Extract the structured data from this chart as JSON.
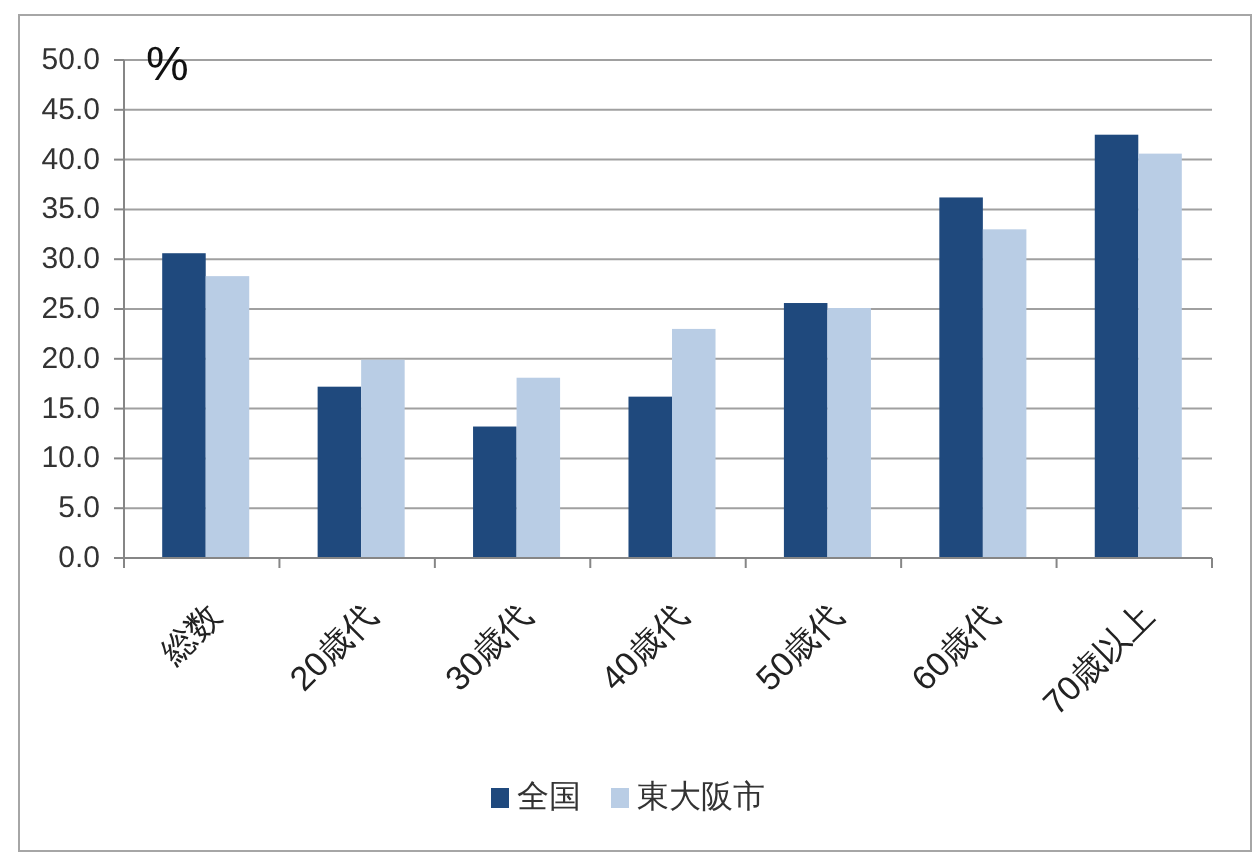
{
  "chart_data": {
    "type": "bar",
    "ylabel": "%",
    "categories": [
      "総数",
      "20歳代",
      "30歳代",
      "40歳代",
      "50歳代",
      "60歳代",
      "70歳以上"
    ],
    "series": [
      {
        "name": "全国",
        "color": "#1f497d",
        "values": [
          30.6,
          17.2,
          13.2,
          16.2,
          25.6,
          36.2,
          42.5
        ]
      },
      {
        "name": "東大阪市",
        "color": "#b9cde5",
        "values": [
          28.3,
          19.9,
          18.1,
          23.0,
          25.1,
          33.0,
          40.6
        ]
      }
    ],
    "ylim": [
      0,
      50
    ],
    "yticks": [
      {
        "value": 0,
        "label": "0.0"
      },
      {
        "value": 5,
        "label": "5.0"
      },
      {
        "value": 10,
        "label": "10.0"
      },
      {
        "value": 15,
        "label": "15.0"
      },
      {
        "value": 20,
        "label": "20.0"
      },
      {
        "value": 25,
        "label": "25.0"
      },
      {
        "value": 30,
        "label": "30.0"
      },
      {
        "value": 35,
        "label": "35.0"
      },
      {
        "value": 40,
        "label": "40.0"
      },
      {
        "value": 45,
        "label": "45.0"
      },
      {
        "value": 50,
        "label": "50.0"
      }
    ],
    "grid": "y",
    "legend": "bottom"
  }
}
